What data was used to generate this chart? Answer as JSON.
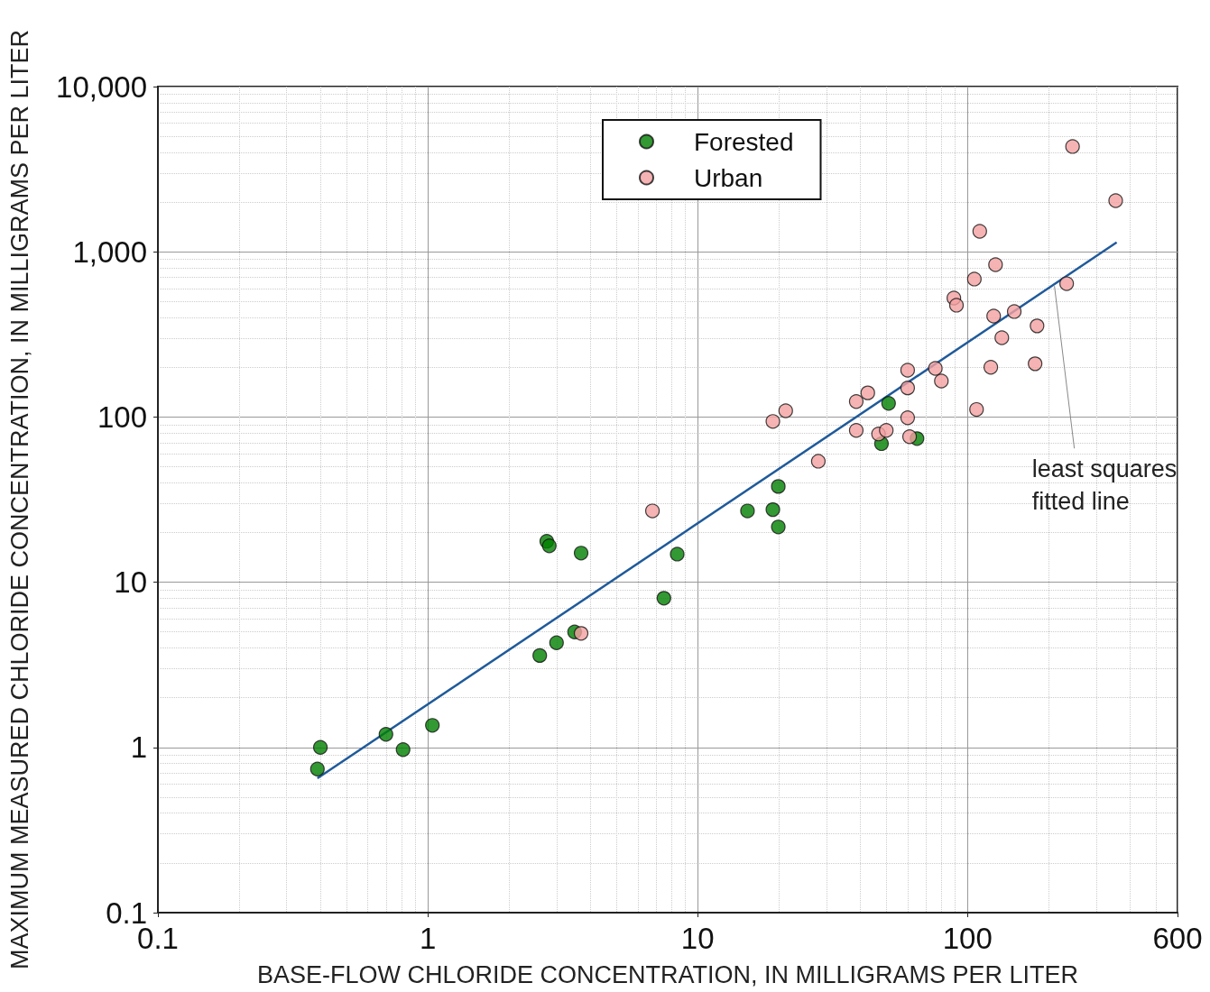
{
  "chart_data": {
    "type": "scatter",
    "xlabel": "BASE-FLOW CHLORIDE CONCENTRATION, IN MILLIGRAMS PER LITER",
    "ylabel": "MAXIMUM MEASURED CHLORIDE CONCENTRATION, IN MILLIGRAMS PER LITER",
    "log": "xy",
    "grid": true,
    "legend": "top",
    "marker": "circle",
    "xlim": [
      0.1,
      600
    ],
    "xticks": [
      0.1,
      1,
      10,
      100,
      600
    ],
    "ylim": [
      0.1,
      10000
    ],
    "yticks": [
      0.1,
      1,
      10,
      100,
      {
        "value": 1000,
        "label": "1,000"
      },
      {
        "value": 10000,
        "label": "10,000"
      }
    ],
    "annotations": [
      {
        "text": "least squares\nfitted line",
        "x": 210,
        "y": 620
      }
    ],
    "series": [
      {
        "name": "Forested",
        "color": "#008000",
        "x": [
          0.39,
          0.4,
          0.7,
          0.81,
          1.04,
          2.6,
          3.0,
          3.5,
          2.76,
          2.82,
          3.7,
          7.5,
          8.4,
          15.3,
          19,
          19.9,
          19.9,
          48,
          51,
          65
        ],
        "values": [
          0.74,
          1.0,
          1.2,
          0.97,
          1.36,
          3.6,
          4.3,
          5.0,
          17.7,
          16.6,
          15,
          8.0,
          14.8,
          27,
          27.5,
          38,
          21.6,
          69,
          121,
          74
        ]
      },
      {
        "name": "Urban",
        "color": "#f4a0a0",
        "x": [
          3.7,
          6.8,
          19,
          21.2,
          28,
          38.7,
          38.7,
          42.7,
          46.8,
          50,
          60,
          60,
          60,
          61,
          76,
          80,
          89,
          91,
          106,
          111,
          108,
          122,
          125,
          127,
          134,
          149,
          178,
          181,
          233,
          245,
          354
        ],
        "values": [
          4.9,
          27,
          94,
          109,
          54,
          124,
          83,
          140,
          79,
          83,
          192,
          150,
          99,
          76,
          197,
          165,
          525,
          475,
          684,
          1330,
          111,
          200,
          408,
          835,
          302,
          435,
          210,
          356,
          641,
          4340,
          2040
        ]
      },
      {
        "type": "line",
        "color": "#1f5a9a",
        "marker": "none",
        "x": [
          0.39,
          357
        ],
        "values": [
          0.65,
          1140
        ]
      }
    ]
  }
}
